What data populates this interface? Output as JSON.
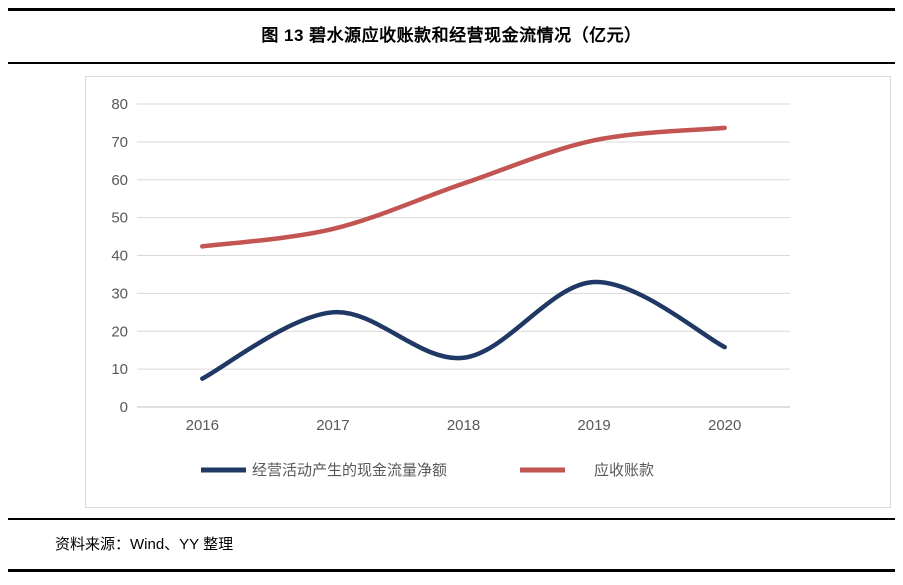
{
  "page": {
    "title": "图 13  碧水源应收账款和经营现金流情况（亿元）",
    "source_label": "资料来源：Wind、YY 整理"
  },
  "chart_data": {
    "type": "line",
    "title": "图 13  碧水源应收账款和经营现金流情况（亿元）",
    "categories": [
      "2016",
      "2017",
      "2018",
      "2019",
      "2020"
    ],
    "series": [
      {
        "name": "经营活动产生的现金流量净额",
        "color": "#1F3864",
        "values": [
          7.5,
          25,
          13,
          33,
          15.8
        ]
      },
      {
        "name": "应收账款",
        "color": "#C25552",
        "values": [
          42.4,
          47,
          59,
          70.4,
          73.7
        ]
      }
    ],
    "xlabel": "",
    "ylabel": "",
    "ylim": [
      0,
      80
    ],
    "ytick_step": 10,
    "grid": true,
    "smooth": true,
    "legend_position": "bottom",
    "axis_label_color": "#595959",
    "grid_color": "#D9D9D9",
    "axis_line_color": "#BFBFBF"
  }
}
